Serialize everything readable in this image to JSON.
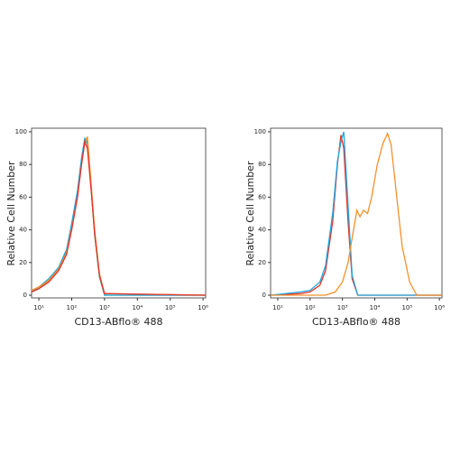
{
  "chart_data": [
    {
      "type": "line",
      "xlabel": "CD13-ABflo® 488",
      "ylabel": "Relative Cell Number",
      "xscale": "log",
      "xlim": [
        6,
        1200000
      ],
      "ylim": [
        0,
        100
      ],
      "yticks": [
        0,
        20,
        40,
        60,
        80,
        100
      ],
      "xticks": [
        {
          "value": 10,
          "label": "10¹"
        },
        {
          "value": 100,
          "label": "10²"
        },
        {
          "value": 1000,
          "label": "10³"
        },
        {
          "value": 10000,
          "label": "10⁴"
        },
        {
          "value": 100000,
          "label": "10⁵"
        },
        {
          "value": 1000000,
          "label": "10⁶"
        }
      ],
      "series": [
        {
          "color": "#44b06e",
          "x": [
            6,
            10,
            20,
            40,
            70,
            100,
            150,
            200,
            250,
            300,
            400,
            500,
            700,
            1000,
            1200000
          ],
          "values": [
            2,
            4,
            9,
            16,
            27,
            42,
            62,
            82,
            95,
            93,
            63,
            37,
            11,
            0,
            0
          ]
        },
        {
          "color": "#1ca8e0",
          "x": [
            6,
            10,
            20,
            40,
            70,
            100,
            150,
            200,
            250,
            300,
            400,
            500,
            700,
            1000,
            1200000
          ],
          "values": [
            2,
            5,
            10,
            17,
            28,
            44,
            64,
            84,
            96,
            94,
            64,
            38,
            12,
            0,
            0
          ]
        },
        {
          "color": "#f4902a",
          "x": [
            6,
            10,
            20,
            40,
            70,
            100,
            150,
            200,
            250,
            300,
            400,
            500,
            700,
            1000,
            1200000
          ],
          "values": [
            3,
            5,
            9,
            16,
            26,
            41,
            60,
            80,
            93,
            97,
            66,
            40,
            13,
            1,
            0
          ]
        },
        {
          "color": "#e8312a",
          "x": [
            6,
            10,
            20,
            40,
            70,
            100,
            150,
            200,
            250,
            300,
            400,
            500,
            700,
            1000,
            1200000
          ],
          "values": [
            2,
            4,
            8,
            15,
            25,
            40,
            60,
            80,
            94,
            90,
            62,
            38,
            12,
            1,
            0
          ]
        }
      ]
    },
    {
      "type": "line",
      "xlabel": "CD13-ABflo® 488",
      "ylabel": "Relative Cell Number",
      "xscale": "log",
      "xlim": [
        6,
        1200000
      ],
      "ylim": [
        0,
        100
      ],
      "yticks": [
        0,
        20,
        40,
        60,
        80,
        100
      ],
      "xticks": [
        {
          "value": 10,
          "label": "10¹"
        },
        {
          "value": 100,
          "label": "10²"
        },
        {
          "value": 1000,
          "label": "10³"
        },
        {
          "value": 10000,
          "label": "10⁴"
        },
        {
          "value": 100000,
          "label": "10⁵"
        },
        {
          "value": 1000000,
          "label": "10⁶"
        }
      ],
      "series": [
        {
          "color": "#e8312a",
          "x": [
            6,
            50,
            100,
            200,
            300,
            500,
            700,
            900,
            1100,
            1500,
            2000,
            3000,
            1200000
          ],
          "values": [
            0,
            1,
            2,
            6,
            15,
            45,
            80,
            98,
            90,
            45,
            10,
            0,
            0
          ]
        },
        {
          "color": "#1ca8e0",
          "x": [
            6,
            50,
            100,
            200,
            300,
            500,
            700,
            900,
            1100,
            1500,
            2000,
            3000,
            1200000
          ],
          "values": [
            0,
            2,
            3,
            8,
            18,
            50,
            82,
            94,
            100,
            55,
            12,
            0,
            0
          ]
        },
        {
          "color": "#f4902a",
          "x": [
            6,
            300,
            600,
            1000,
            1500,
            2000,
            2800,
            3500,
            4500,
            6000,
            8000,
            12000,
            18000,
            25000,
            32000,
            45000,
            70000,
            120000,
            200000,
            1200000
          ],
          "values": [
            0,
            0,
            2,
            8,
            20,
            35,
            52,
            48,
            52,
            50,
            60,
            80,
            93,
            99,
            92,
            65,
            30,
            8,
            0,
            0
          ]
        }
      ]
    }
  ]
}
